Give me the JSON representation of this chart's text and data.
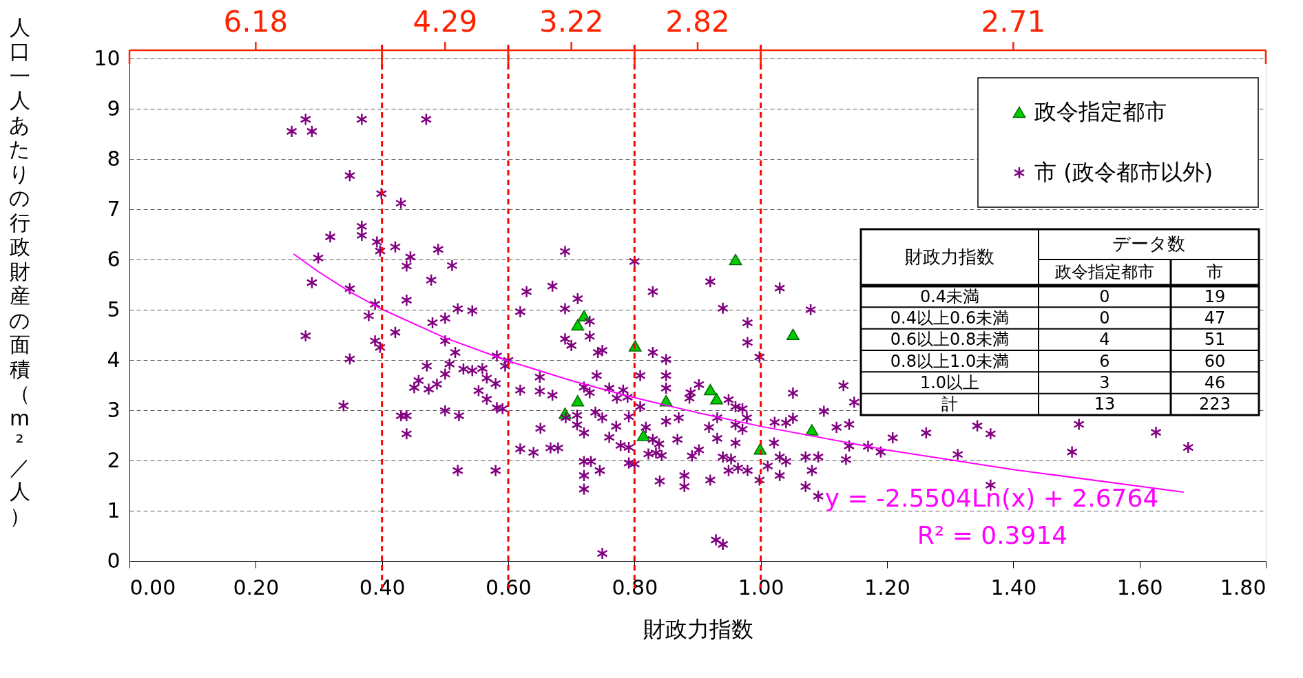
{
  "chart_data": {
    "type": "scatter",
    "xlabel": "財政力指数",
    "ylabel": "人口一人あたりの行政財産の面積（m²／人）",
    "xlim": [
      0,
      1.8
    ],
    "ylim": [
      0,
      10
    ],
    "xticks": [
      {
        "value": 0,
        "label": "0.00"
      },
      {
        "value": 0.2,
        "label": "0.20"
      },
      {
        "value": 0.4,
        "label": "0.40"
      },
      {
        "value": 0.6,
        "label": "0.60"
      },
      {
        "value": 0.8,
        "label": "0.80"
      },
      {
        "value": 1.0,
        "label": "1.00"
      },
      {
        "value": 1.2,
        "label": "1.20"
      },
      {
        "value": 1.4,
        "label": "1.40"
      },
      {
        "value": 1.6,
        "label": "1.60"
      },
      {
        "value": 1.8,
        "label": "1.80"
      }
    ],
    "yticks": [
      0,
      1,
      2,
      3,
      4,
      5,
      6,
      7,
      8,
      9,
      10
    ],
    "grid": "y",
    "legend": "top right",
    "series": [
      {
        "name": "政令指定都市",
        "marker": "triangle",
        "color": "#00cc00",
        "x": [
          0.96,
          0.72,
          0.71,
          0.801,
          1.051,
          0.92,
          0.93,
          0.85,
          0.71,
          0.69,
          0.814,
          0.999,
          1.081
        ],
        "values": [
          6.0,
          4.88,
          4.7,
          4.28,
          4.51,
          3.41,
          3.23,
          3.19,
          3.19,
          2.94,
          2.5,
          2.23,
          2.61
        ]
      },
      {
        "name": "市 (政令都市以外)",
        "marker": "cross",
        "color": "#800080",
        "x": [
          0.257,
          0.279,
          0.289,
          0.368,
          0.47,
          0.349,
          0.399,
          0.43,
          0.318,
          0.368,
          0.368,
          0.392,
          0.421,
          0.397,
          0.445,
          0.489,
          0.299,
          0.439,
          0.511,
          0.289,
          0.349,
          0.478,
          0.389,
          0.379,
          0.439,
          0.52,
          0.543,
          0.48,
          0.5,
          0.279,
          0.421,
          0.389,
          0.397,
          0.349,
          0.5,
          0.516,
          0.339,
          0.43,
          0.439,
          0.439,
          0.52,
          0.458,
          0.471,
          0.487,
          0.5,
          0.507,
          0.529,
          0.543,
          0.559,
          0.566,
          0.553,
          0.566,
          0.5,
          0.522,
          0.451,
          0.474,
          0.595,
          0.69,
          0.8,
          0.92,
          1.03,
          0.629,
          0.67,
          0.829,
          0.71,
          0.69,
          0.619,
          0.94,
          1.079,
          0.979,
          0.729,
          0.729,
          0.69,
          0.7,
          0.742,
          0.749,
          0.979,
          0.998,
          0.829,
          0.85,
          0.582,
          0.6,
          0.809,
          0.85,
          0.85,
          0.65,
          0.74,
          0.58,
          0.619,
          0.65,
          0.67,
          0.72,
          0.729,
          0.76,
          0.782,
          0.789,
          0.772,
          0.582,
          0.591,
          0.809,
          0.902,
          0.889,
          0.887,
          1.131,
          1.1,
          1.051,
          1.051,
          1.04,
          1.022,
          1.12,
          0.918,
          0.931,
          0.949,
          0.96,
          0.971,
          0.978,
          0.96,
          0.971,
          0.96,
          0.931,
          1.021,
          0.87,
          0.85,
          0.818,
          0.791,
          0.749,
          0.738,
          0.709,
          0.709,
          0.691,
          0.72,
          0.651,
          0.771,
          0.76,
          0.778,
          0.791,
          0.791,
          0.829,
          0.839,
          0.868,
          0.834,
          0.822,
          0.843,
          0.902,
          0.891,
          0.94,
          0.953,
          0.964,
          0.949,
          0.979,
          0.998,
          1.011,
          1.03,
          1.03,
          1.04,
          1.071,
          1.091,
          1.081,
          1.071,
          1.091,
          1.135,
          0.619,
          0.64,
          0.667,
          0.679,
          0.72,
          0.731,
          0.72,
          0.72,
          0.745,
          0.58,
          0.879,
          0.879,
          0.92,
          0.84,
          0.749,
          0.929,
          0.94,
          0.8,
          1.148,
          1.14,
          1.14,
          1.17,
          1.19,
          1.209,
          1.262,
          1.312,
          1.343,
          1.364,
          1.364,
          1.493,
          1.504,
          1.626,
          1.677
        ],
        "values": [
          8.55,
          8.79,
          8.55,
          8.79,
          8.79,
          7.67,
          7.31,
          7.12,
          6.45,
          6.66,
          6.48,
          6.35,
          6.25,
          6.17,
          6.05,
          6.2,
          6.03,
          5.87,
          5.88,
          5.54,
          5.42,
          5.59,
          5.11,
          4.88,
          5.19,
          5.02,
          4.98,
          4.74,
          4.83,
          4.48,
          4.55,
          4.38,
          4.25,
          4.02,
          4.38,
          4.15,
          3.09,
          2.89,
          2.89,
          2.53,
          1.8,
          3.59,
          3.88,
          3.52,
          3.72,
          3.92,
          3.82,
          3.79,
          3.83,
          3.64,
          3.39,
          3.22,
          2.99,
          2.89,
          3.45,
          3.42,
          3.88,
          6.16,
          5.96,
          5.56,
          5.43,
          5.36,
          5.47,
          5.36,
          5.22,
          5.02,
          4.96,
          5.03,
          5.0,
          4.74,
          4.77,
          4.47,
          4.42,
          4.29,
          4.15,
          4.19,
          4.35,
          4.06,
          4.15,
          4.01,
          4.08,
          3.99,
          3.69,
          3.69,
          3.44,
          3.66,
          3.69,
          3.53,
          3.4,
          3.38,
          3.3,
          3.46,
          3.35,
          3.44,
          3.4,
          3.26,
          3.24,
          3.05,
          3.03,
          3.07,
          3.51,
          3.35,
          3.24,
          3.49,
          2.98,
          3.34,
          2.84,
          2.75,
          2.76,
          2.66,
          2.66,
          2.85,
          3.21,
          3.07,
          3.03,
          2.85,
          2.71,
          2.62,
          2.35,
          2.44,
          2.35,
          2.85,
          2.78,
          2.66,
          2.87,
          2.85,
          2.96,
          2.9,
          2.71,
          2.85,
          2.55,
          2.64,
          2.68,
          2.46,
          2.3,
          2.26,
          1.95,
          2.42,
          2.33,
          2.42,
          2.15,
          2.13,
          2.1,
          2.21,
          2.09,
          2.07,
          2.03,
          1.85,
          1.8,
          1.8,
          1.61,
          1.89,
          2.07,
          1.7,
          1.98,
          2.07,
          2.07,
          1.8,
          1.48,
          1.29,
          2.02,
          2.23,
          2.16,
          2.25,
          2.25,
          1.98,
          1.98,
          1.7,
          1.43,
          1.8,
          1.8,
          1.7,
          1.48,
          1.61,
          1.59,
          0.15,
          0.42,
          0.33,
          1.93,
          3.16,
          2.72,
          2.29,
          2.28,
          2.17,
          2.45,
          2.55,
          2.12,
          2.69,
          2.53,
          1.51,
          2.17,
          2.72,
          2.56,
          2.26
        ]
      },
      {
        "type": "line",
        "color": "#ff00ff",
        "x": [
          0.26,
          0.3,
          0.35,
          0.4,
          0.5,
          0.6,
          0.7,
          0.8,
          0.9,
          1.0,
          1.2,
          1.4,
          1.67
        ],
        "values": [
          6.11,
          5.75,
          5.35,
          5.01,
          4.44,
          3.98,
          3.59,
          3.25,
          2.95,
          2.68,
          2.21,
          1.82,
          1.37
        ]
      }
    ],
    "ref_lines": [
      {
        "axis": "x",
        "value": 0.4,
        "color": "#ff0000",
        "line_style": "dashed"
      },
      {
        "axis": "x",
        "value": 0.6,
        "color": "#ff0000",
        "line_style": "dashed"
      },
      {
        "axis": "x",
        "value": 0.8,
        "color": "#ff0000",
        "line_style": "dashed"
      },
      {
        "axis": "x",
        "value": 1.0,
        "color": "#ff0000",
        "line_style": "dashed"
      }
    ],
    "annotations": [
      "y = -2.5504Ln(x) + 2.6764",
      "R² = 0.3914",
      "6.18",
      "4.29",
      "3.22",
      "2.82",
      "2.71",
      "財政力指数",
      "データ数",
      "政令指定都市",
      "市",
      "0.4未満",
      "0",
      "19",
      "0.4以上0.6未満",
      "0",
      "47",
      "0.6以上0.8未満",
      "4",
      "51",
      "0.8以上1.0未満",
      "6",
      "60",
      "1.0以上",
      "3",
      "46",
      "計",
      "13",
      "223"
    ]
  }
}
